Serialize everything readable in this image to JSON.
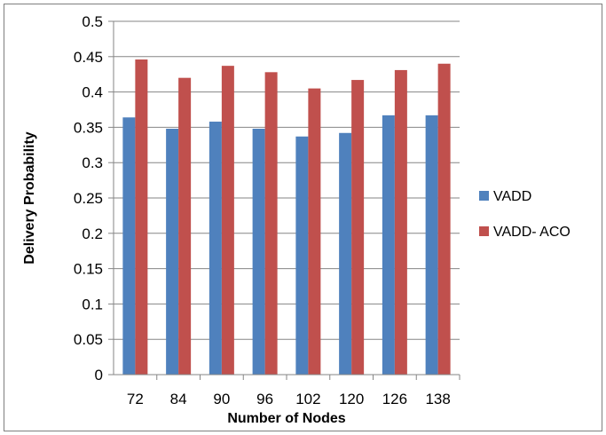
{
  "chart_data": {
    "type": "bar",
    "title": "",
    "xlabel": "Number of Nodes",
    "ylabel": "Delivery Probability",
    "categories": [
      "72",
      "84",
      "90",
      "96",
      "102",
      "120",
      "126",
      "138"
    ],
    "series": [
      {
        "name": "VADD",
        "color": "#4f81bd",
        "values": [
          0.364,
          0.348,
          0.358,
          0.348,
          0.337,
          0.342,
          0.367,
          0.367
        ]
      },
      {
        "name": "VADD- ACO",
        "color": "#c0504d",
        "values": [
          0.446,
          0.42,
          0.437,
          0.428,
          0.405,
          0.417,
          0.431,
          0.44
        ]
      }
    ],
    "ylim": [
      0,
      0.5
    ],
    "yticks": [
      "0",
      "0.05",
      "0.1",
      "0.15",
      "0.2",
      "0.25",
      "0.3",
      "0.35",
      "0.4",
      "0.45",
      "0.5"
    ],
    "grid": true,
    "legend_position": "right"
  }
}
